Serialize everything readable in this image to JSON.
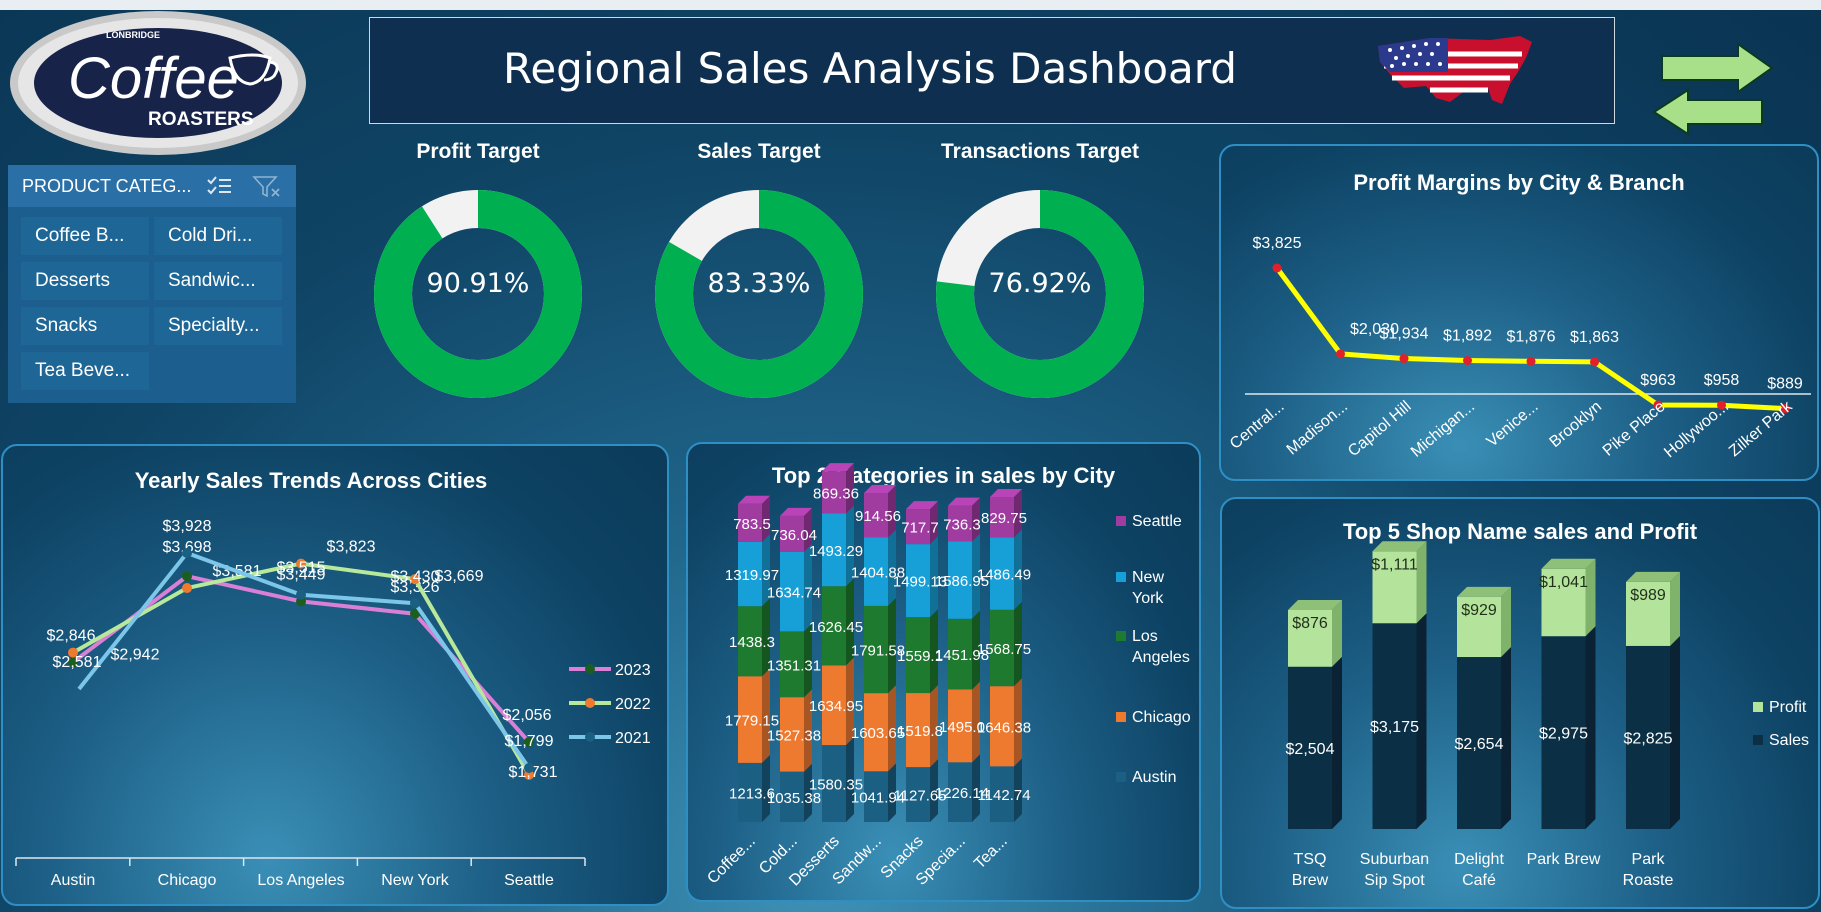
{
  "dashboard": {
    "title": "Regional Sales Analysis Dashboard"
  },
  "logo": {
    "top_text": "LONBRIDGE",
    "main_text": "Coffee",
    "sub_text": "ROASTERS"
  },
  "colors": {
    "accent_green": "#00b050",
    "track_gray": "#f2f2f2",
    "panel_border": "#2f8fc4"
  },
  "navigation": {
    "forward_icon": "arrow-right-icon",
    "back_icon": "arrow-left-icon"
  },
  "slicer": {
    "header": "PRODUCT CATEG...",
    "multi_select_icon": "multi-select-icon",
    "clear_filter_icon": "clear-filter-icon",
    "items": [
      "Coffee B...",
      "Cold Dri...",
      "Desserts",
      "Sandwic...",
      "Snacks",
      "Specialty...",
      "Tea Beve..."
    ]
  },
  "gauges": [
    {
      "label": "Profit Target",
      "value_text": "90.91%",
      "value": 0.9091
    },
    {
      "label": "Sales Target",
      "value_text": "83.33%",
      "value": 0.8333
    },
    {
      "label": "Transactions Target",
      "value_text": "76.92%",
      "value": 0.7692
    }
  ],
  "chart_data": [
    {
      "type": "line",
      "title": "Profit Margins by City & Branch",
      "categories": [
        "Central...",
        "Madison...",
        "Capitol Hill",
        "Michigan...",
        "Venice...",
        "Brooklyn",
        "Pike Place",
        "Hollywoo...",
        "Zilker Park"
      ],
      "values": [
        3825,
        2030,
        1934,
        1892,
        1876,
        1863,
        963,
        958,
        889
      ],
      "labels": [
        "$3,825",
        "$2,030",
        "$1,934",
        "$1,892",
        "$1,876",
        "$1,863",
        "$963",
        "$958",
        "$889"
      ],
      "line_color": "#ffff00",
      "marker_color": "#e0202a"
    },
    {
      "type": "line",
      "title": "Yearly Sales Trends Across Cities",
      "categories": [
        "Austin",
        "Chicago",
        "Los Angeles",
        "New York",
        "Seattle"
      ],
      "series": [
        {
          "name": "2023",
          "color": "#d97fd6",
          "values": [
            2846,
            3698,
            3449,
            3326,
            2056
          ],
          "labels": [
            "$2,846",
            "$3,698",
            "$3,449",
            "$3,326",
            "$2,056"
          ]
        },
        {
          "name": "2022",
          "color": "#b8e89a",
          "values": [
            2942,
            3581,
            3823,
            3669,
            1731
          ],
          "labels": [
            "$2,942",
            "$3,581",
            "$3,823",
            "$3,669",
            "$1,731"
          ]
        },
        {
          "name": "2021",
          "color": "#7cc6ea",
          "values": [
            2581,
            3928,
            3515,
            3430,
            1799
          ],
          "labels": [
            "$2,581",
            "$3,928",
            "$3,515",
            "$3,430",
            "$1,799"
          ]
        }
      ],
      "legend": "right"
    },
    {
      "type": "bar",
      "stacked": true,
      "title": "Top 2 Categories in sales by City",
      "categories": [
        "Coffee...",
        "Cold...",
        "Desserts",
        "Sandw...",
        "Snacks",
        "Specia...",
        "Tea..."
      ],
      "series": [
        {
          "name": "Austin",
          "color": "#1b5f83",
          "values": [
            1213.6,
            1035.38,
            1580.35,
            1041.94,
            1127.65,
            1226.14,
            1142.74
          ],
          "labels": [
            "1213.6",
            "1035.38",
            "1580.35",
            "1041.94",
            "1127.65",
            "1226.14",
            "1142.74"
          ]
        },
        {
          "name": "Chicago",
          "color": "#ee7a30",
          "values": [
            1779.15,
            1527.38,
            1634.95,
            1603.65,
            1519.8,
            1495.0,
            1646.38
          ],
          "labels": [
            "1779.15",
            "1527.38",
            "1634.95",
            "1603.65",
            "1519.8",
            "1495.0",
            "1646.38"
          ]
        },
        {
          "name": "Los Angeles",
          "color": "#1e7a2e",
          "values": [
            1438.3,
            1351.31,
            1626.45,
            1791.58,
            1559.1,
            1451.98,
            1568.75
          ],
          "labels": [
            "1438.3",
            "1351.31",
            "1626.45",
            "1791.58",
            "1559.1",
            "1451.98",
            "1568.75"
          ]
        },
        {
          "name": "New York",
          "color": "#17a0d8",
          "values": [
            1319.97,
            1634.74,
            1493.29,
            1404.88,
            1499.13,
            1586.95,
            1486.49
          ],
          "labels": [
            "1319.97",
            "1634.74",
            "1493.29",
            "1404.88",
            "1499.13",
            "1586.95",
            "1486.49"
          ]
        },
        {
          "name": "Seattle",
          "color": "#a03ba0",
          "values": [
            783.5,
            736.04,
            869.36,
            914.56,
            717.7,
            736.3,
            829.75
          ],
          "labels": [
            "783.5",
            "736.04",
            "869.36",
            "914.56",
            "717.7",
            "736.3",
            "829.75"
          ]
        }
      ],
      "legend": "right"
    },
    {
      "type": "bar",
      "stacked": true,
      "title": "Top 5 Shop Name sales and Profit",
      "categories": [
        "TSQ Brew",
        "Suburban Sip Spot",
        "Delight Café",
        "Park Brew",
        "Park Roaste"
      ],
      "series": [
        {
          "name": "Sales",
          "color": "#0b2f44",
          "values": [
            2504,
            3175,
            2654,
            2975,
            2825
          ],
          "labels": [
            "$2,504",
            "$3,175",
            "$2,654",
            "$2,975",
            "$2,825"
          ]
        },
        {
          "name": "Profit",
          "color": "#b4e39c",
          "values": [
            876,
            1111,
            929,
            1041,
            989
          ],
          "labels": [
            "$876",
            "$1,111",
            "$929",
            "$1,041",
            "$989"
          ]
        }
      ],
      "legend": "right"
    }
  ]
}
